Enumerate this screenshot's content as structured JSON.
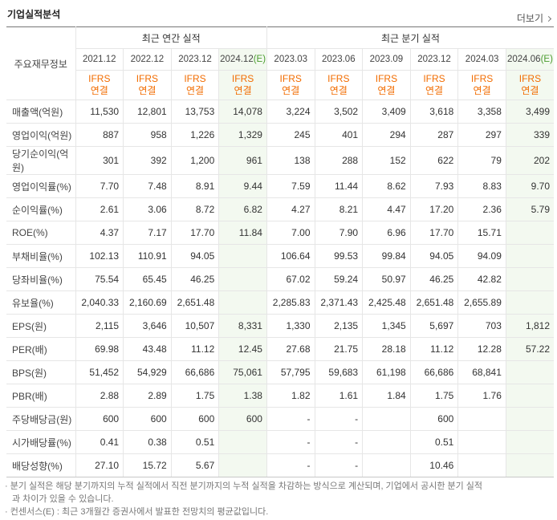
{
  "header": {
    "title": "기업실적분석",
    "more": "더보기"
  },
  "table": {
    "corner": "주요재무정보",
    "groups": [
      {
        "label": "최근 연간 실적",
        "span": 4
      },
      {
        "label": "최근 분기 실적",
        "span": 6
      }
    ],
    "periods": [
      {
        "date": "2021.12",
        "std": "IFRS",
        "consol": "연결"
      },
      {
        "date": "2022.12",
        "std": "IFRS",
        "consol": "연결"
      },
      {
        "date": "2023.12",
        "std": "IFRS",
        "consol": "연결"
      },
      {
        "date": "2024.12",
        "est": "(E)",
        "std": "IFRS",
        "consol": "연결"
      },
      {
        "date": "2023.03",
        "std": "IFRS",
        "consol": "연결"
      },
      {
        "date": "2023.06",
        "std": "IFRS",
        "consol": "연결"
      },
      {
        "date": "2023.09",
        "std": "IFRS",
        "consol": "연결"
      },
      {
        "date": "2023.12",
        "std": "IFRS",
        "consol": "연결"
      },
      {
        "date": "2024.03",
        "std": "IFRS",
        "consol": "연결"
      },
      {
        "date": "2024.06",
        "est": "(E)",
        "std": "IFRS",
        "consol": "연결"
      }
    ],
    "sections": [
      [
        {
          "label": "매출액(억원)",
          "values": [
            "11,530",
            "12,801",
            "13,753",
            "14,078",
            "3,224",
            "3,502",
            "3,409",
            "3,618",
            "3,358",
            "3,499"
          ]
        },
        {
          "label": "영업이익(억원)",
          "values": [
            "887",
            "958",
            "1,226",
            "1,329",
            "245",
            "401",
            "294",
            "287",
            "297",
            "339"
          ]
        },
        {
          "label": "당기순이익(억원)",
          "values": [
            "301",
            "392",
            "1,200",
            "961",
            "138",
            "288",
            "152",
            "622",
            "79",
            "202"
          ]
        }
      ],
      [
        {
          "label": "영업이익률(%)",
          "values": [
            "7.70",
            "7.48",
            "8.91",
            "9.44",
            "7.59",
            "11.44",
            "8.62",
            "7.93",
            "8.83",
            "9.70"
          ]
        },
        {
          "label": "순이익률(%)",
          "values": [
            "2.61",
            "3.06",
            "8.72",
            "6.82",
            "4.27",
            "8.21",
            "4.47",
            "17.20",
            "2.36",
            "5.79"
          ]
        },
        {
          "label": "ROE(%)",
          "values": [
            "4.37",
            "7.17",
            "17.70",
            "11.84",
            "7.00",
            "7.90",
            "6.96",
            "17.70",
            "15.71",
            null
          ]
        }
      ],
      [
        {
          "label": "부채비율(%)",
          "values": [
            "102.13",
            "110.91",
            "94.05",
            null,
            "106.64",
            "99.53",
            "99.84",
            "94.05",
            "94.09",
            null
          ]
        },
        {
          "label": "당좌비율(%)",
          "values": [
            "75.54",
            "65.45",
            "46.25",
            null,
            "67.02",
            "59.24",
            "50.97",
            "46.25",
            "42.82",
            null
          ]
        },
        {
          "label": "유보율(%)",
          "values": [
            "2,040.33",
            "2,160.69",
            "2,651.48",
            null,
            "2,285.83",
            "2,371.43",
            "2,425.48",
            "2,651.48",
            "2,655.89",
            null
          ]
        }
      ],
      [
        {
          "label": "EPS(원)",
          "values": [
            "2,115",
            "3,646",
            "10,507",
            "8,331",
            "1,330",
            "2,135",
            "1,345",
            "5,697",
            "703",
            "1,812"
          ]
        },
        {
          "label": "PER(배)",
          "values": [
            "69.98",
            "43.48",
            "11.12",
            "12.45",
            "27.68",
            "21.75",
            "28.18",
            "11.12",
            "12.28",
            "57.22"
          ]
        },
        {
          "label": "BPS(원)",
          "values": [
            "51,452",
            "54,929",
            "66,686",
            "75,061",
            "57,795",
            "59,683",
            "61,198",
            "66,686",
            "68,841",
            null
          ]
        },
        {
          "label": "PBR(배)",
          "values": [
            "2.88",
            "2.89",
            "1.75",
            "1.38",
            "1.82",
            "1.61",
            "1.84",
            "1.75",
            "1.76",
            null
          ]
        }
      ],
      [
        {
          "label": "주당배당금(원)",
          "values": [
            "600",
            "600",
            "600",
            "600",
            "-",
            "-",
            null,
            "600",
            null,
            null
          ]
        },
        {
          "label": "시가배당률(%)",
          "values": [
            "0.41",
            "0.38",
            "0.51",
            null,
            "-",
            "-",
            null,
            "0.51",
            null,
            null
          ]
        },
        {
          "label": "배당성향(%)",
          "values": [
            "27.10",
            "15.72",
            "5.67",
            null,
            "-",
            "-",
            null,
            "10.46",
            null,
            null
          ]
        }
      ]
    ]
  },
  "notes": [
    "분기 실적은 해당 분기까지의 누적 실적에서 직전 분기까지의 누적 실적을 차감하는 방식으로 계산되며, 기업에서 공시한 분기 실적과 차이가 있을 수 있습니다.",
    "컨센서스(E) : 최근 3개월간 증권사에서 발표한 전망치의 평균값입니다."
  ]
}
